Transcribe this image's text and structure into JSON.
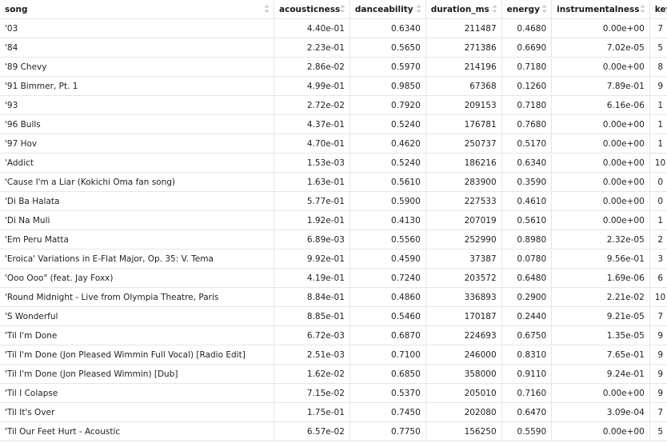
{
  "columns": [
    "song",
    "acousticness",
    "danceability",
    "duration_ms",
    "energy",
    "instrumentalness",
    "key"
  ],
  "rows": [
    [
      "'03",
      "4.40e-01",
      "0.6340",
      "211487",
      "0.4680",
      "0.00e+00",
      "7"
    ],
    [
      "'84",
      "2.23e-01",
      "0.5650",
      "271386",
      "0.6690",
      "7.02e-05",
      "5"
    ],
    [
      "'89 Chevy",
      "2.86e-02",
      "0.5970",
      "214196",
      "0.7180",
      "0.00e+00",
      "8"
    ],
    [
      "'91 Bimmer, Pt. 1",
      "4.99e-01",
      "0.9850",
      "67368",
      "0.1260",
      "7.89e-01",
      "9"
    ],
    [
      "'93",
      "2.72e-02",
      "0.7920",
      "209153",
      "0.7180",
      "6.16e-06",
      "1"
    ],
    [
      "'96 Bulls",
      "4.37e-01",
      "0.5240",
      "176781",
      "0.7680",
      "0.00e+00",
      "1"
    ],
    [
      "'97 Hov",
      "4.70e-01",
      "0.4620",
      "250737",
      "0.5170",
      "0.00e+00",
      "1"
    ],
    [
      "'Addict",
      "1.53e-03",
      "0.5240",
      "186216",
      "0.6340",
      "0.00e+00",
      "10"
    ],
    [
      "'Cause I'm a Liar (Kokichi Oma fan song)",
      "1.63e-01",
      "0.5610",
      "283900",
      "0.3590",
      "0.00e+00",
      "0"
    ],
    [
      "'Di Ba Halata",
      "5.77e-01",
      "0.5900",
      "227533",
      "0.4610",
      "0.00e+00",
      "0"
    ],
    [
      "'Di Na Muli",
      "1.92e-01",
      "0.4130",
      "207019",
      "0.5610",
      "0.00e+00",
      "1"
    ],
    [
      "'Em Peru Matta",
      "6.89e-03",
      "0.5560",
      "252990",
      "0.8980",
      "2.32e-05",
      "2"
    ],
    [
      "'Eroica' Variations in E-Flat Major, Op. 35: V. Tema",
      "9.92e-01",
      "0.4590",
      "37387",
      "0.0780",
      "9.56e-01",
      "3"
    ],
    [
      "'Ooo Ooo\" (feat. Jay Foxx)",
      "4.19e-01",
      "0.7240",
      "203572",
      "0.6480",
      "1.69e-06",
      "6"
    ],
    [
      "'Round Midnight - Live from Olympia Theatre, Paris",
      "8.84e-01",
      "0.4860",
      "336893",
      "0.2900",
      "2.21e-02",
      "10"
    ],
    [
      "'S Wonderful",
      "8.85e-01",
      "0.5460",
      "170187",
      "0.2440",
      "9.21e-05",
      "7"
    ],
    [
      "'Til I'm Done",
      "6.72e-03",
      "0.6870",
      "224693",
      "0.6750",
      "1.35e-05",
      "9"
    ],
    [
      "'Til I'm Done (Jon Pleased Wimmin Full Vocal) [Radio Edit]",
      "2.51e-03",
      "0.7100",
      "246000",
      "0.8310",
      "7.65e-01",
      "9"
    ],
    [
      "'Til I'm Done (Jon Pleased Wimmin) [Dub]",
      "1.62e-02",
      "0.6850",
      "358000",
      "0.9110",
      "9.24e-01",
      "9"
    ],
    [
      "'Til I Colapse",
      "7.15e-02",
      "0.5370",
      "205010",
      "0.7160",
      "0.00e+00",
      "9"
    ],
    [
      "'Til It's Over",
      "1.75e-01",
      "0.7450",
      "202080",
      "0.6470",
      "3.09e-04",
      "7"
    ],
    [
      "'Til Our Feet Hurt - Acoustic",
      "6.57e-02",
      "0.7750",
      "156250",
      "0.5590",
      "0.00e+00",
      "5"
    ]
  ],
  "icons": {
    "sort": "sort-updown-icon"
  },
  "colors": {
    "border": "#e6e6e6",
    "sort_icon": "#c8c8c8"
  }
}
